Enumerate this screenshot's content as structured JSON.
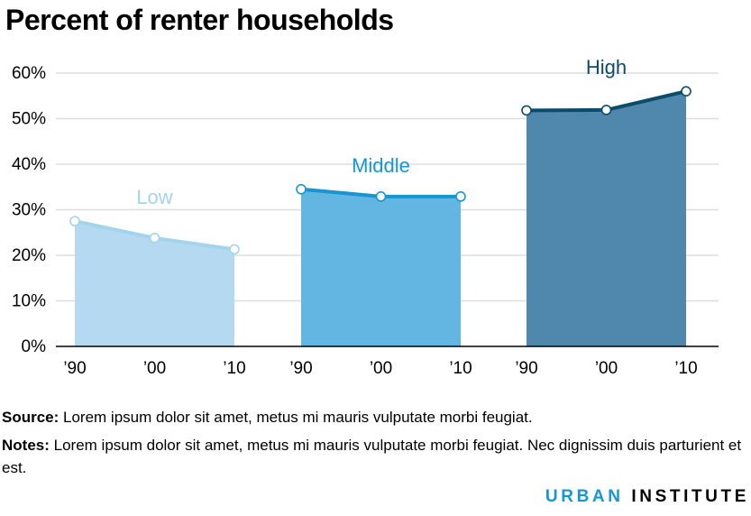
{
  "title": "Percent of renter households",
  "chart_data": {
    "type": "area",
    "title": "Percent of renter households",
    "ylim": [
      0,
      60
    ],
    "yticks": [
      "0%",
      "10%",
      "20%",
      "30%",
      "40%",
      "50%",
      "60%"
    ],
    "ytick_values": [
      0,
      10,
      20,
      30,
      40,
      50,
      60
    ],
    "grid": true,
    "series": [
      {
        "name": "Low",
        "x": [
          "’90",
          "’00",
          "’10"
        ],
        "values": [
          27.5,
          23.8,
          21.3
        ],
        "fill": "#b4d9f1",
        "line": "#a2d4ec",
        "label_color": "#a2d4ec"
      },
      {
        "name": "Middle",
        "x": [
          "’90",
          "’00",
          "’10"
        ],
        "values": [
          34.5,
          32.9,
          32.9
        ],
        "fill": "#62b6e1",
        "line": "#1696d2",
        "label_color": "#1696d2"
      },
      {
        "name": "High",
        "x": [
          "’90",
          "’00",
          "’10"
        ],
        "values": [
          51.8,
          51.9,
          56.0
        ],
        "fill": "#4f87ad",
        "line": "#0a4c6a",
        "label_color": "#0a4c6a"
      }
    ]
  },
  "footer": {
    "source_label": "Source:",
    "source_text": " Lorem ipsum dolor sit amet, metus mi mauris vulputate morbi feugiat.",
    "notes_label": "Notes:",
    "notes_text": " Lorem ipsum dolor sit amet, metus mi mauris vulputate morbi feugiat. Nec dignissim duis parturient et est."
  },
  "logo": {
    "word1": "URBAN",
    "word2": "INSTITUTE"
  }
}
